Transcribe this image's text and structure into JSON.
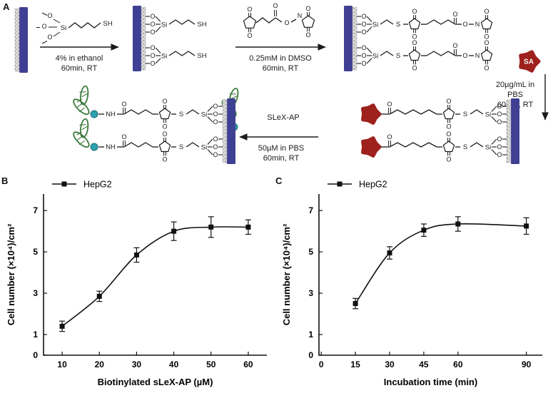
{
  "figure": {
    "panel_a": "A",
    "panel_b": "B",
    "panel_c": "C"
  },
  "scheme": {
    "atoms": {
      "o": "O",
      "si": "Si",
      "s": "S",
      "n": "N",
      "sh": "SH",
      "nh": "NH"
    },
    "sa_label": "SA",
    "steps": [
      {
        "line1": "4% in ethanol",
        "line2": "60min, RT"
      },
      {
        "line1": "0.25mM in DMSO",
        "line2": "60min, RT"
      },
      {
        "line1": "20µg/mL in",
        "line2": "PBS",
        "line3": "60min, RT"
      },
      {
        "reagent": "SLeX-AP",
        "line1": "50µM in PBS",
        "line2": "60min, RT"
      }
    ],
    "colors": {
      "slide_blue": "#3f3f94",
      "surface_gray": "#b9b9b9",
      "sa_red": "#9e211d",
      "aptamer_green": "#3c7a3c",
      "biotin_teal": "#2fa0ae",
      "bond_black": "#1a1a1a"
    }
  },
  "chart_data": [
    {
      "id": "chartB",
      "type": "line",
      "x": [
        10,
        20,
        30,
        40,
        50,
        60
      ],
      "series": [
        {
          "name": "HepG2",
          "values": [
            1.4,
            2.85,
            4.85,
            6.0,
            6.2,
            6.2
          ],
          "errors": [
            0.25,
            0.25,
            0.35,
            0.45,
            0.5,
            0.35
          ]
        }
      ],
      "xlabel": "Biotinylated sLeX-AP (µM)",
      "ylabel": "Cell number (×10⁴)/cm²",
      "xticks": [
        10,
        20,
        30,
        40,
        50,
        60
      ],
      "yticks": [
        0,
        1,
        3,
        5,
        7
      ],
      "xlim": [
        5,
        65
      ],
      "ylim": [
        0,
        7.8
      ],
      "grid": false,
      "legend_position": "top-left"
    },
    {
      "id": "chartC",
      "type": "line",
      "x": [
        15,
        30,
        45,
        60,
        90
      ],
      "series": [
        {
          "name": "HepG2",
          "values": [
            2.5,
            4.95,
            6.05,
            6.35,
            6.25
          ],
          "errors": [
            0.25,
            0.3,
            0.3,
            0.35,
            0.4
          ]
        }
      ],
      "xlabel": "Incubation time (min)",
      "ylabel": "Cell number (×10⁴)/cm²",
      "xticks": [
        0,
        15,
        30,
        45,
        60,
        90
      ],
      "yticks": [
        0,
        1,
        3,
        5,
        7
      ],
      "xlim": [
        -1,
        97
      ],
      "ylim": [
        0,
        7.8
      ],
      "grid": false,
      "legend_position": "top-left"
    }
  ]
}
